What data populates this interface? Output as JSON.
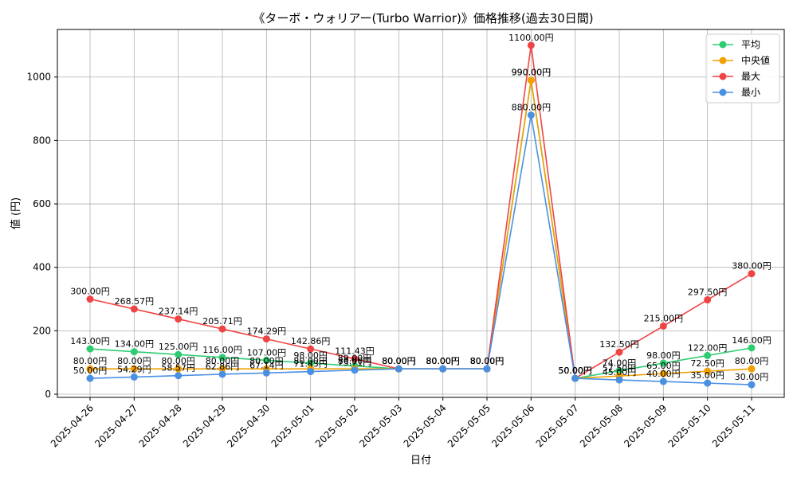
{
  "chart_data": {
    "type": "line",
    "title": "《ターボ・ウォリアー(Turbo Warrior)》価格推移(過去30日間)",
    "xlabel": "日付",
    "ylabel": "値 (円)",
    "ylim": [
      -10,
      1150
    ],
    "yticks": [
      0,
      200,
      400,
      600,
      800,
      1000
    ],
    "grid": true,
    "legend_position": "top-right",
    "label_suffix": "円",
    "categories": [
      "2025-04-26",
      "2025-04-27",
      "2025-04-28",
      "2025-04-29",
      "2025-04-30",
      "2025-05-01",
      "2025-05-02",
      "2025-05-03",
      "2025-05-04",
      "2025-05-05",
      "2025-05-06",
      "2025-05-07",
      "2025-05-08",
      "2025-05-09",
      "2025-05-10",
      "2025-05-11"
    ],
    "series": [
      {
        "name": "平均",
        "color": "#2ecc71",
        "values": [
          143.0,
          134.0,
          125.0,
          116.0,
          107.0,
          98.0,
          89.0,
          80.0,
          80.0,
          80.0,
          990.0,
          50.0,
          74.0,
          98.0,
          122.0,
          146.0
        ]
      },
      {
        "name": "中央値",
        "color": "#f0a000",
        "values": [
          80.0,
          80.0,
          80.0,
          80.0,
          80.0,
          80.0,
          80.0,
          80.0,
          80.0,
          80.0,
          990.0,
          50.0,
          57.5,
          65.0,
          72.5,
          80.0
        ]
      },
      {
        "name": "最大",
        "color": "#ef4444",
        "values": [
          300.0,
          268.57,
          237.14,
          205.71,
          174.29,
          142.86,
          111.43,
          80.0,
          80.0,
          80.0,
          1100.0,
          50.0,
          132.5,
          215.0,
          297.5,
          380.0
        ]
      },
      {
        "name": "最小",
        "color": "#4a90e2",
        "values": [
          50.0,
          54.29,
          58.57,
          62.86,
          67.14,
          71.43,
          75.71,
          80.0,
          80.0,
          80.0,
          880.0,
          50.0,
          45.0,
          40.0,
          35.0,
          30.0
        ]
      }
    ]
  }
}
